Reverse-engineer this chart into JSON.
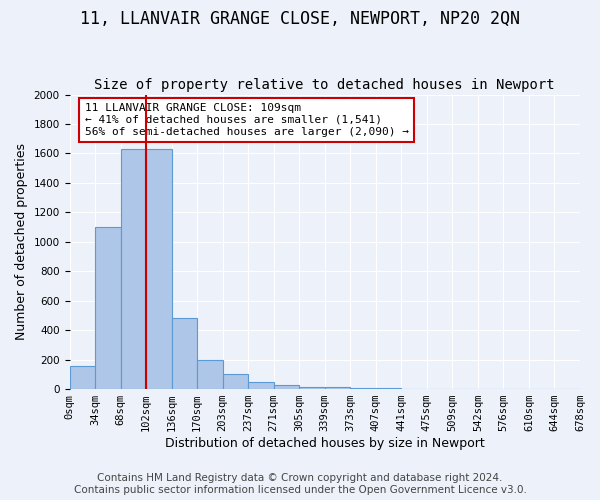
{
  "title": "11, LLANVAIR GRANGE CLOSE, NEWPORT, NP20 2QN",
  "subtitle": "Size of property relative to detached houses in Newport",
  "xlabel": "Distribution of detached houses by size in Newport",
  "ylabel": "Number of detached properties",
  "footer_line1": "Contains HM Land Registry data © Crown copyright and database right 2024.",
  "footer_line2": "Contains public sector information licensed under the Open Government Licence v3.0.",
  "bin_labels": [
    "0sqm",
    "34sqm",
    "68sqm",
    "102sqm",
    "136sqm",
    "170sqm",
    "203sqm",
    "237sqm",
    "271sqm",
    "305sqm",
    "339sqm",
    "373sqm",
    "407sqm",
    "441sqm",
    "475sqm",
    "509sqm",
    "542sqm",
    "576sqm",
    "610sqm",
    "644sqm",
    "678sqm"
  ],
  "bar_values": [
    160,
    1100,
    1630,
    1630,
    480,
    200,
    100,
    45,
    30,
    15,
    15,
    5,
    5,
    0,
    0,
    0,
    0,
    0,
    0,
    0
  ],
  "bar_color": "#aec6e8",
  "bar_edge_color": "#5b9bd5",
  "vline_x": 2.5,
  "vline_color": "#cc0000",
  "annotation_text": "11 LLANVAIR GRANGE CLOSE: 109sqm\n← 41% of detached houses are smaller (1,541)\n56% of semi-detached houses are larger (2,090) →",
  "annotation_box_color": "#ffffff",
  "annotation_box_edge_color": "#cc0000",
  "ylim": [
    0,
    2000
  ],
  "yticks": [
    0,
    200,
    400,
    600,
    800,
    1000,
    1200,
    1400,
    1600,
    1800,
    2000
  ],
  "background_color": "#edf2fa",
  "grid_color": "#ffffff",
  "title_fontsize": 12,
  "subtitle_fontsize": 10,
  "axis_label_fontsize": 9,
  "tick_fontsize": 7.5,
  "footer_fontsize": 7.5
}
